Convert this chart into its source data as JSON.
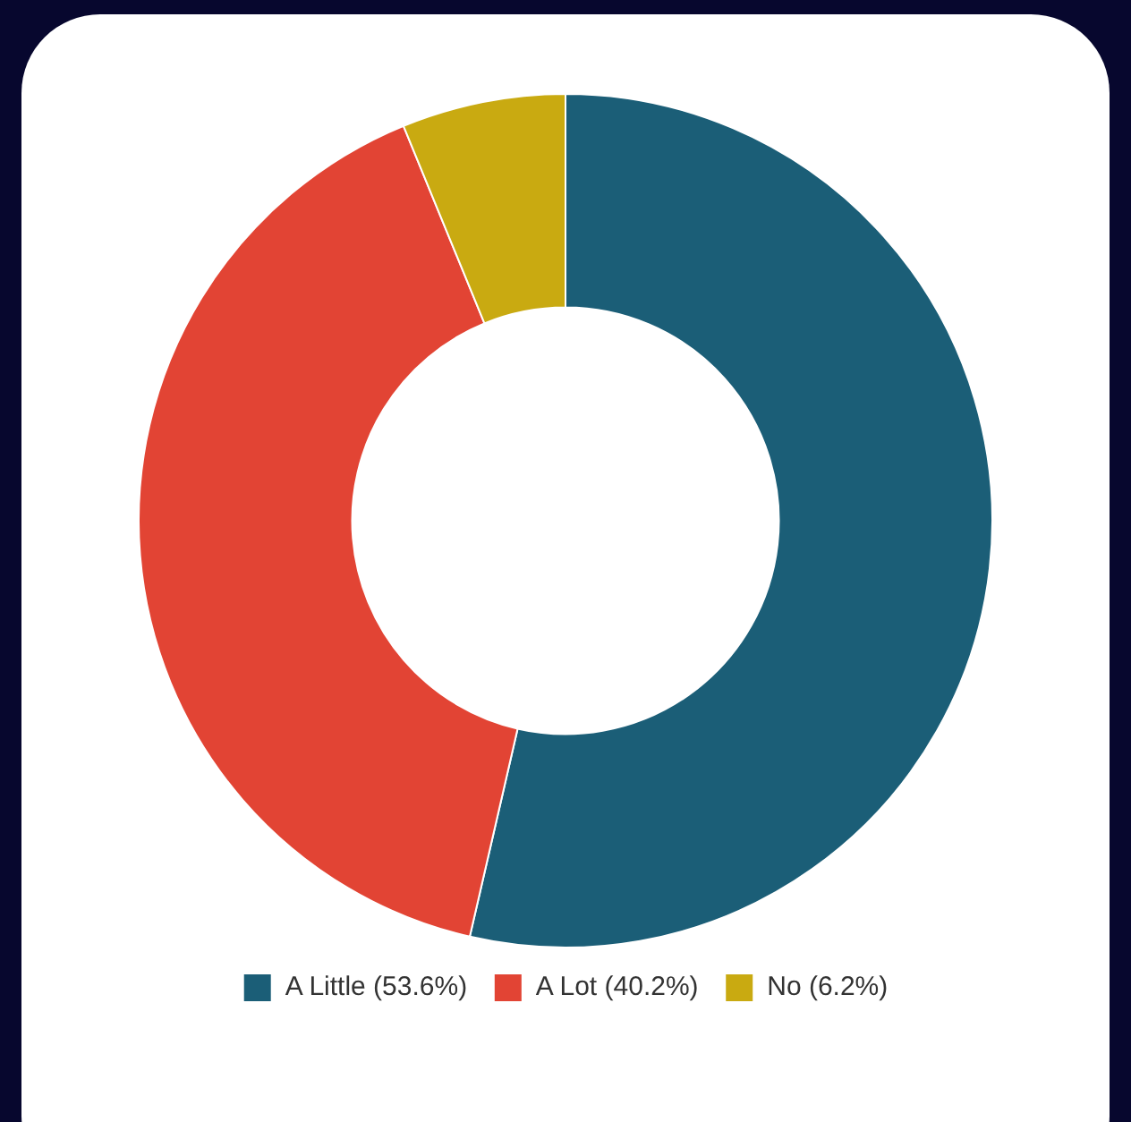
{
  "chart_data": {
    "type": "donut",
    "categories": [
      "A Little (53.6%)",
      "A Lot (40.2%)",
      "No (6.2%)"
    ],
    "values": [
      53.6,
      40.2,
      6.2
    ],
    "colors": [
      "#1b5e77",
      "#e24434",
      "#c9aa11"
    ],
    "legend": "bottom"
  }
}
